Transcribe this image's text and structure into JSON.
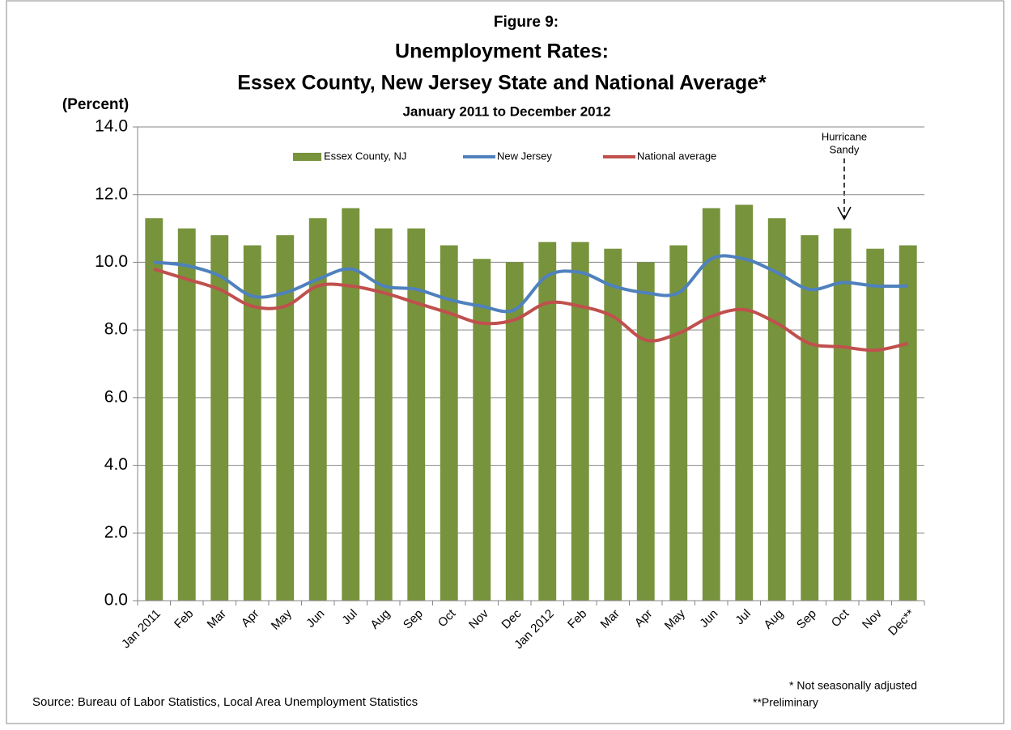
{
  "chart_data": {
    "type": "bar_line",
    "figure_label": "Figure 9:",
    "title": "Unemployment Rates:",
    "title_line2": "Essex County, New Jersey State and National Average*",
    "subtitle": "January 2011 to December 2012",
    "y_axis_label": "(Percent)",
    "annotation": [
      "Hurricane",
      "Sandy"
    ],
    "notes": [
      "* Not seasonally adjusted",
      "**Preliminary"
    ],
    "source": "Source: Bureau of Labor Statistics, Local Area Unemployment Statistics",
    "categories": [
      "Jan 2011",
      "Feb",
      "Mar",
      "Apr",
      "May",
      "Jun",
      "Jul",
      "Aug",
      "Sep",
      "Oct",
      "Nov",
      "Dec",
      "Jan 2012",
      "Feb",
      "Mar",
      "Apr",
      "May",
      "Jun",
      "Jul",
      "Aug",
      "Sep",
      "Oct",
      "Nov",
      "Dec**"
    ],
    "series": [
      {
        "name": "Essex County,  NJ",
        "kind": "bar",
        "color": "#77933c",
        "values": [
          11.3,
          11.0,
          10.8,
          10.5,
          10.8,
          11.3,
          11.6,
          11.0,
          11.0,
          10.5,
          10.1,
          10.0,
          10.6,
          10.6,
          10.4,
          10.0,
          10.5,
          11.6,
          11.7,
          11.3,
          10.8,
          11.0,
          10.4,
          10.5
        ]
      },
      {
        "name": "New Jersey",
        "kind": "line",
        "color": "#4f81bd",
        "values": [
          10.0,
          9.9,
          9.6,
          9.0,
          9.1,
          9.5,
          9.8,
          9.3,
          9.2,
          8.9,
          8.7,
          8.6,
          9.6,
          9.7,
          9.3,
          9.1,
          9.1,
          10.1,
          10.1,
          9.7,
          9.2,
          9.4,
          9.3,
          9.3
        ]
      },
      {
        "name": "National average",
        "kind": "line",
        "color": "#c0504d",
        "values": [
          9.8,
          9.5,
          9.2,
          8.7,
          8.7,
          9.3,
          9.3,
          9.1,
          8.8,
          8.5,
          8.2,
          8.3,
          8.8,
          8.7,
          8.4,
          7.7,
          7.9,
          8.4,
          8.6,
          8.2,
          7.6,
          7.5,
          7.4,
          7.6
        ]
      }
    ],
    "ylim": [
      0,
      14
    ],
    "yticks": [
      {
        "value": 0,
        "label": "0.0"
      },
      {
        "value": 2,
        "label": "2.0"
      },
      {
        "value": 4,
        "label": "4.0"
      },
      {
        "value": 6,
        "label": "6.0"
      },
      {
        "value": 8,
        "label": "8.0"
      },
      {
        "value": 10,
        "label": "10.0"
      },
      {
        "value": 12,
        "label": "12.0"
      },
      {
        "value": 14,
        "label": "14.0"
      }
    ],
    "grid": true,
    "legend": "top"
  }
}
